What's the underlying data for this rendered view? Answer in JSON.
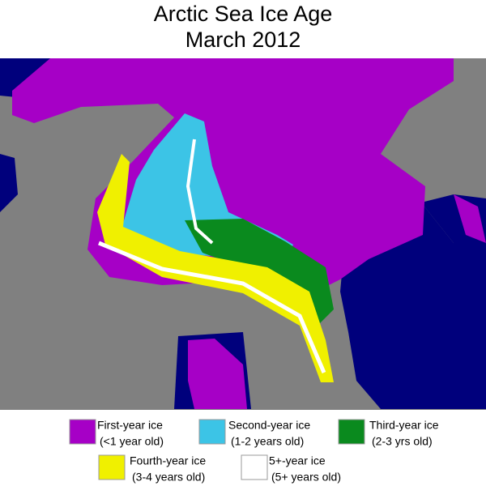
{
  "title": [
    "Arctic Sea Ice Age",
    "March 2012"
  ],
  "legend": [
    {
      "label": "First-year ice",
      "sublabel": "(<1 year old)",
      "color": "#a600c6"
    },
    {
      "label": "Second-year ice",
      "sublabel": "(1-2 years old)",
      "color": "#3cc4e6"
    },
    {
      "label": "Third-year ice",
      "sublabel": "(2-3 yrs old)",
      "color": "#0a8a1e"
    },
    {
      "label": "Fourth-year ice",
      "sublabel": "(3-4 years old)",
      "color": "#f0f000"
    },
    {
      "label": "5+-year ice",
      "sublabel": "(5+ years old)",
      "color": "#ffffff"
    }
  ]
}
